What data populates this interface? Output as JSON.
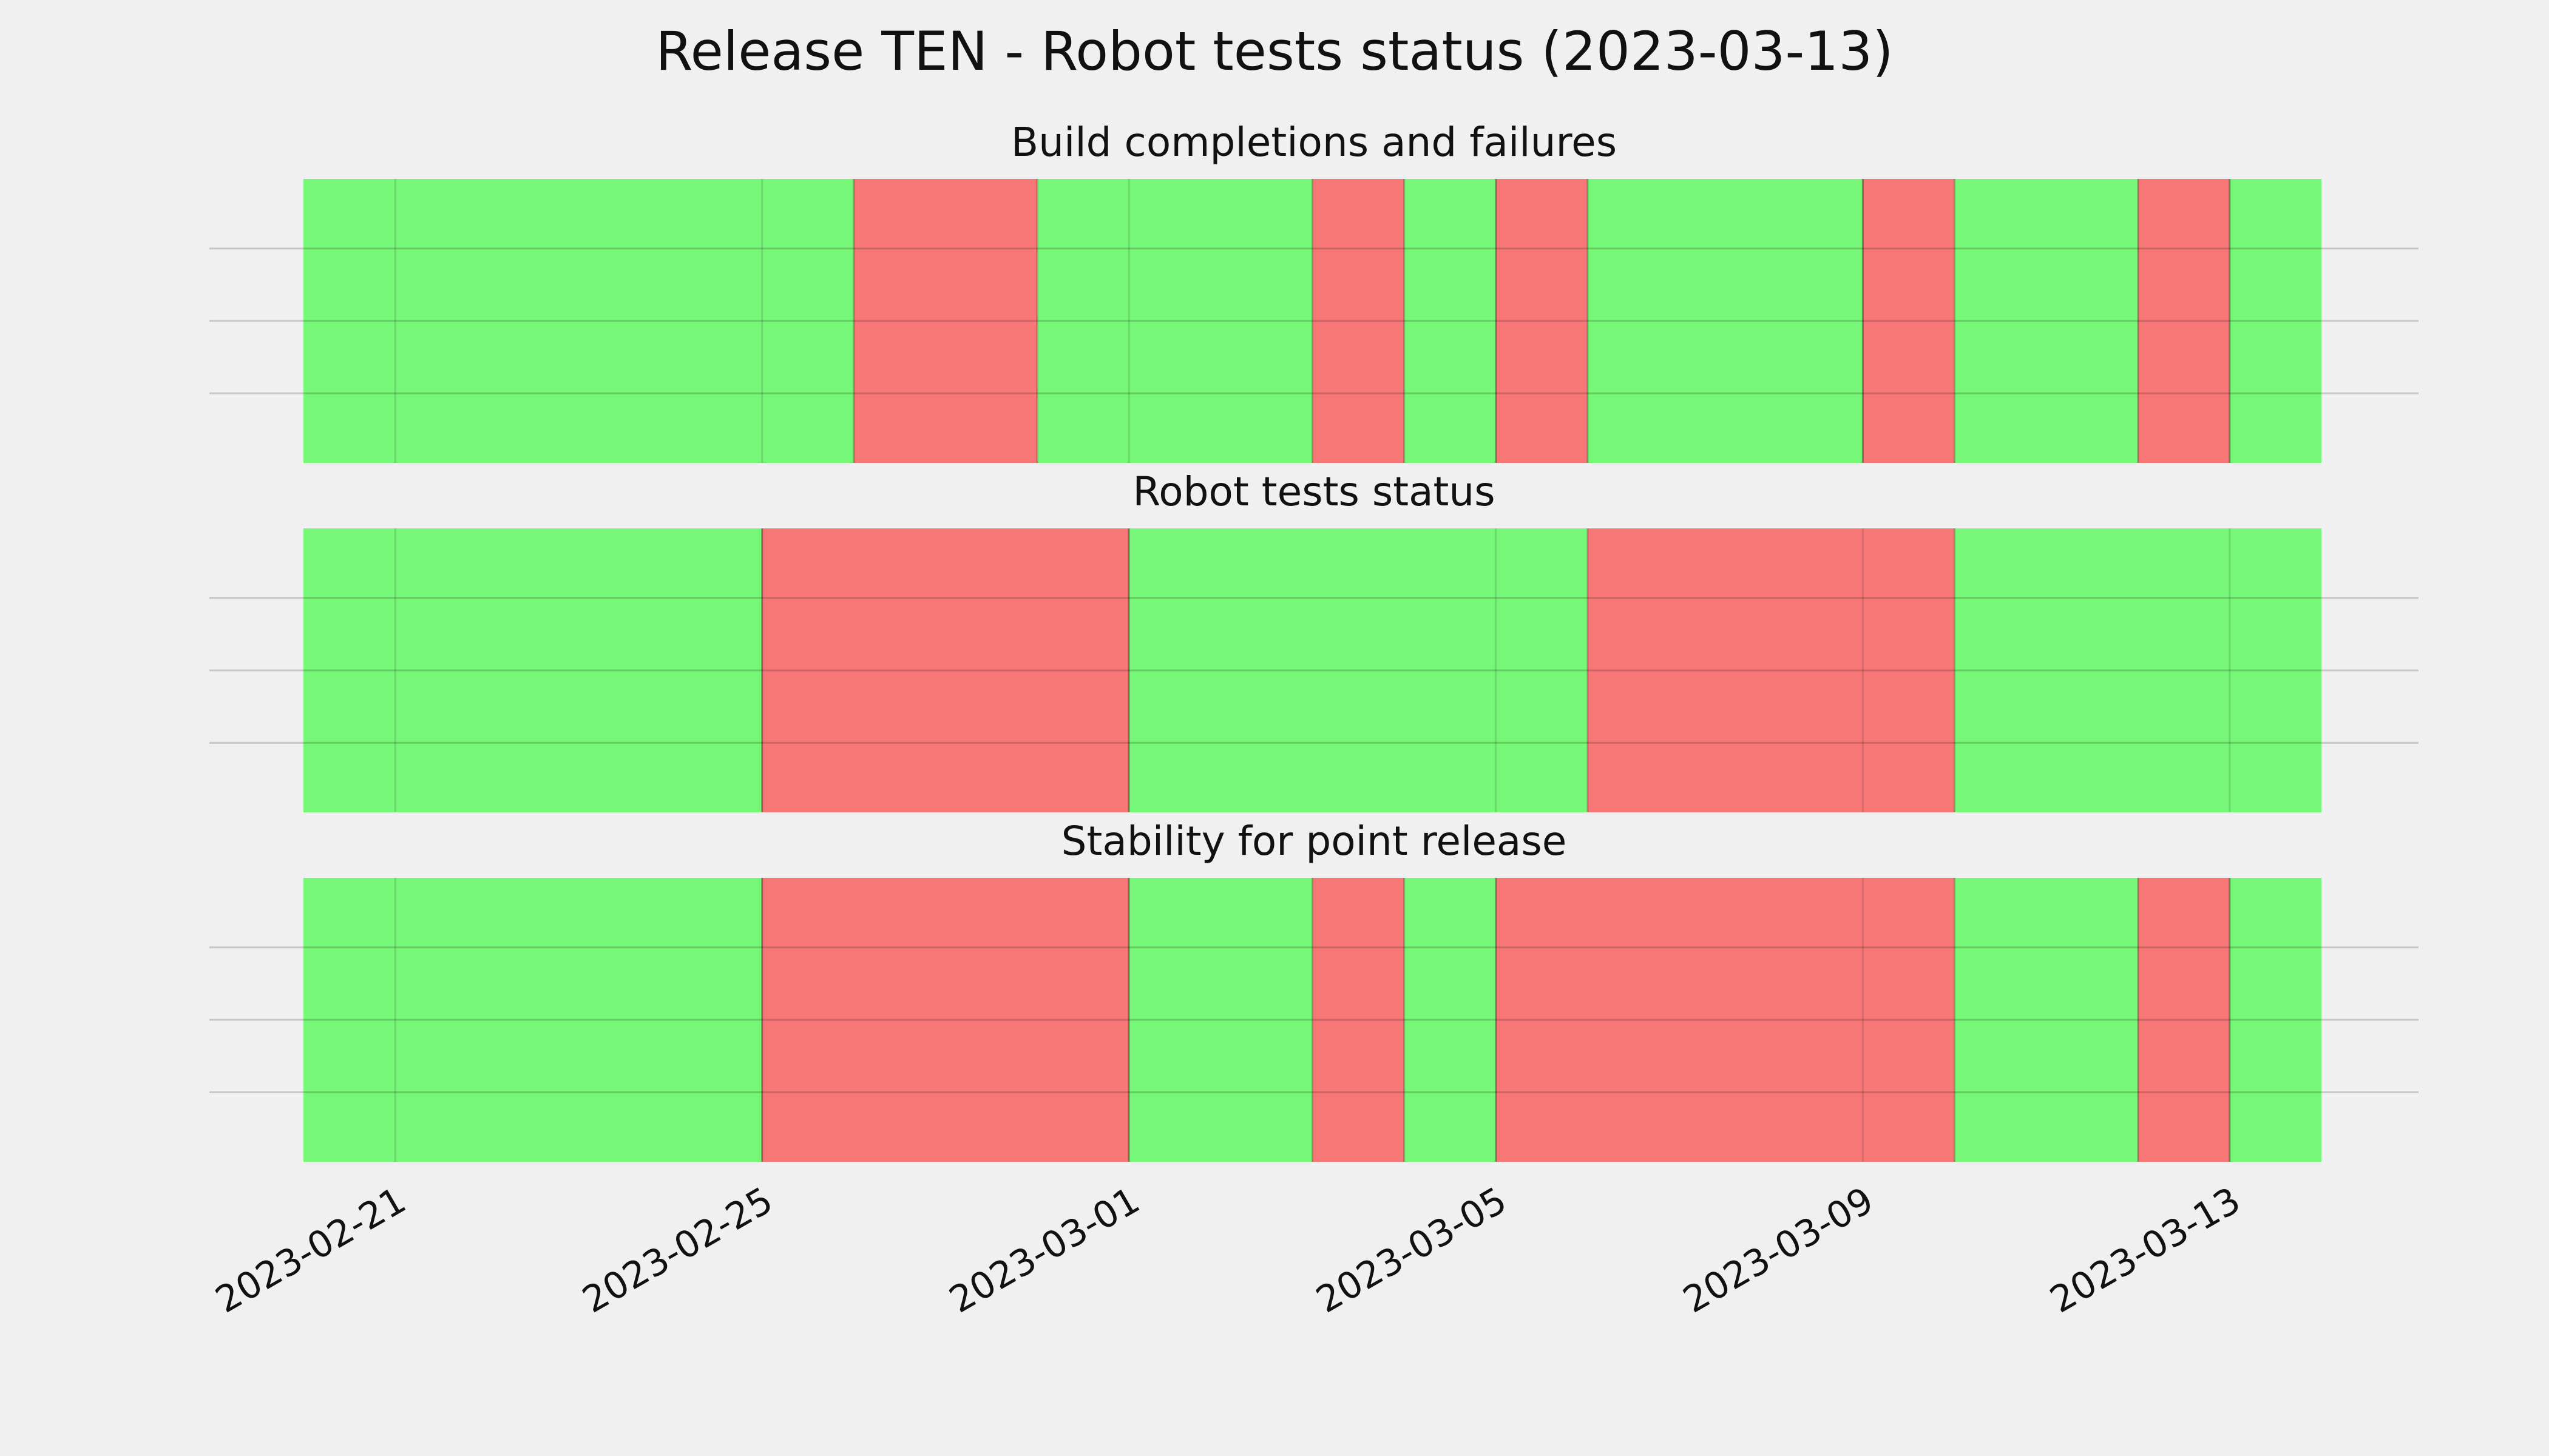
{
  "chart_data": {
    "type": "timeline",
    "title": "Release TEN - Robot tests status (2023-03-13)",
    "x_axis": {
      "type": "date",
      "range": [
        "2023-02-20",
        "2023-03-15"
      ],
      "tick_labels": [
        "2023-02-21",
        "2023-02-25",
        "2023-03-01",
        "2023-03-05",
        "2023-03-09",
        "2023-03-13"
      ]
    },
    "grid": true,
    "colors": {
      "pass": "#77f777",
      "fail": "#f77777",
      "background": "#f0f0f0",
      "grid": "#c8c8c8"
    },
    "panels": [
      {
        "title": "Build completions and failures",
        "segments": [
          {
            "start": "2023-02-20",
            "end": "2023-02-26",
            "status": "pass"
          },
          {
            "start": "2023-02-26",
            "end": "2023-02-28",
            "status": "fail"
          },
          {
            "start": "2023-02-28",
            "end": "2023-03-03",
            "status": "pass"
          },
          {
            "start": "2023-03-03",
            "end": "2023-03-04",
            "status": "fail"
          },
          {
            "start": "2023-03-04",
            "end": "2023-03-05",
            "status": "pass"
          },
          {
            "start": "2023-03-05",
            "end": "2023-03-06",
            "status": "fail"
          },
          {
            "start": "2023-03-06",
            "end": "2023-03-09",
            "status": "pass"
          },
          {
            "start": "2023-03-09",
            "end": "2023-03-10",
            "status": "fail"
          },
          {
            "start": "2023-03-10",
            "end": "2023-03-12",
            "status": "pass"
          },
          {
            "start": "2023-03-12",
            "end": "2023-03-13",
            "status": "fail"
          },
          {
            "start": "2023-03-13",
            "end": "2023-03-14",
            "status": "pass"
          }
        ]
      },
      {
        "title": "Robot tests status",
        "segments": [
          {
            "start": "2023-02-20",
            "end": "2023-02-25",
            "status": "pass"
          },
          {
            "start": "2023-02-25",
            "end": "2023-03-01",
            "status": "fail"
          },
          {
            "start": "2023-03-01",
            "end": "2023-03-06",
            "status": "pass"
          },
          {
            "start": "2023-03-06",
            "end": "2023-03-10",
            "status": "fail"
          },
          {
            "start": "2023-03-10",
            "end": "2023-03-14",
            "status": "pass"
          }
        ]
      },
      {
        "title": "Stability for point release",
        "segments": [
          {
            "start": "2023-02-20",
            "end": "2023-02-25",
            "status": "pass"
          },
          {
            "start": "2023-02-25",
            "end": "2023-03-01",
            "status": "fail"
          },
          {
            "start": "2023-03-01",
            "end": "2023-03-03",
            "status": "pass"
          },
          {
            "start": "2023-03-03",
            "end": "2023-03-04",
            "status": "fail"
          },
          {
            "start": "2023-03-04",
            "end": "2023-03-05",
            "status": "pass"
          },
          {
            "start": "2023-03-05",
            "end": "2023-03-10",
            "status": "fail"
          },
          {
            "start": "2023-03-10",
            "end": "2023-03-12",
            "status": "pass"
          },
          {
            "start": "2023-03-12",
            "end": "2023-03-13",
            "status": "fail"
          },
          {
            "start": "2023-03-13",
            "end": "2023-03-14",
            "status": "pass"
          }
        ]
      }
    ]
  }
}
